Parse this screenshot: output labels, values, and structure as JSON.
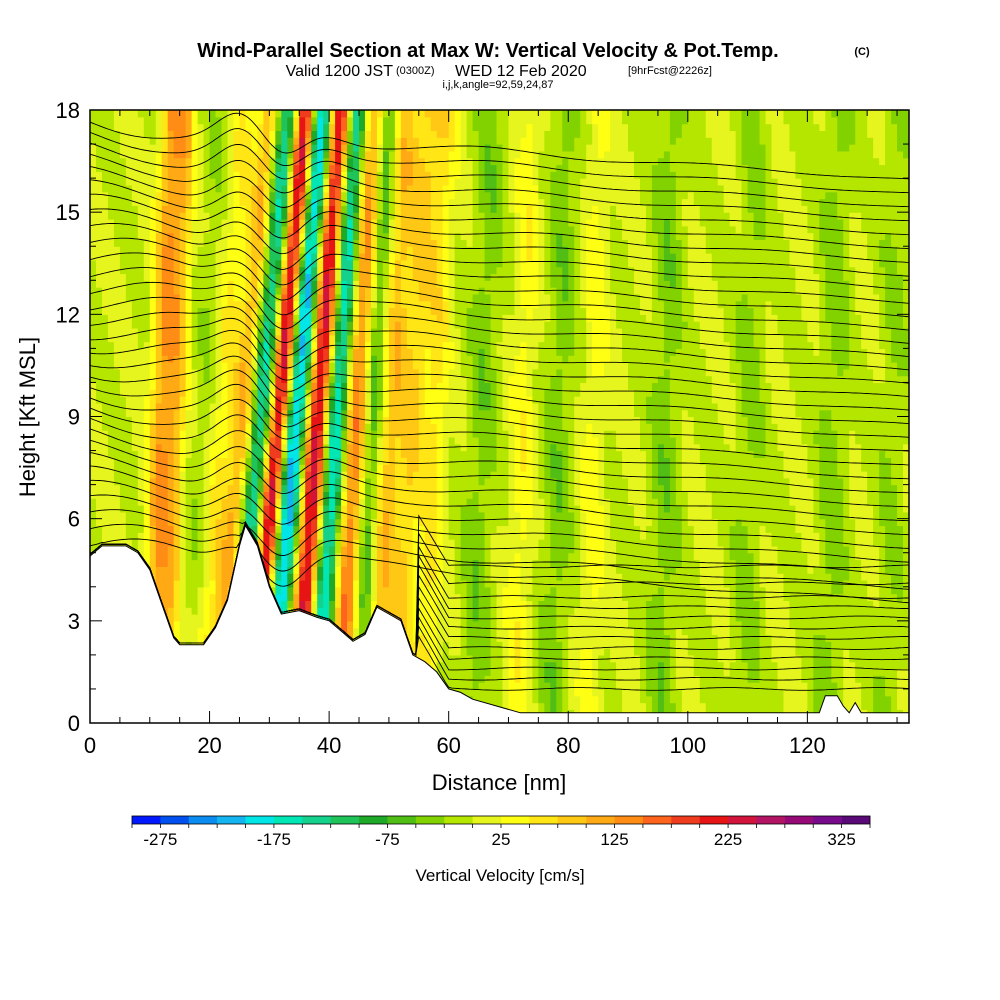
{
  "chart_data": {
    "type": "heatmap",
    "title": {
      "main": "Wind-Parallel Section at Max W: Vertical Velocity & Pot.Temp.",
      "copyright": "(C)"
    },
    "subtitle": {
      "valid_prefix": "Valid 1200 JST",
      "utc": "(0300Z)",
      "date": "WED 12 Feb 2020",
      "forecast": "[9hrFcst@2226z]"
    },
    "indices_line": "i,j,k,angle=92,59,24,87",
    "xlabel": "Distance [nm]",
    "ylabel": "Height [Kft MSL]",
    "xlim": [
      0,
      137
    ],
    "ylim": [
      0,
      18
    ],
    "x_ticks": [
      "0",
      "20",
      "40",
      "60",
      "80",
      "100",
      "120"
    ],
    "y_ticks": [
      "0",
      "3",
      "6",
      "9",
      "12",
      "15",
      "18"
    ],
    "x_tick_values": [
      0,
      20,
      40,
      60,
      80,
      100,
      120
    ],
    "y_tick_values": [
      0,
      3,
      6,
      9,
      12,
      15,
      18
    ],
    "colorbar": {
      "title": "Vertical Velocity [cm/s]",
      "min": -300,
      "max": 350,
      "step": 25,
      "labels": [
        "-275",
        "-175",
        "-75",
        "25",
        "125",
        "225",
        "325"
      ],
      "label_values": [
        -275,
        -175,
        -75,
        25,
        125,
        225,
        325
      ],
      "colors": [
        "#0018ff",
        "#0050f0",
        "#0a8cf0",
        "#14b4f0",
        "#00e6e6",
        "#00e6b4",
        "#14d28c",
        "#1ec35a",
        "#1eaa28",
        "#50be14",
        "#82d200",
        "#b4e600",
        "#e6f51e",
        "#ffff14",
        "#ffe614",
        "#ffc814",
        "#ffaa14",
        "#ff8c14",
        "#ff641e",
        "#f03c1e",
        "#e61414",
        "#d2143c",
        "#b41464",
        "#960a78",
        "#780a8c",
        "#5a0a78"
      ]
    },
    "velocity_field": [
      {
        "center_nm": 11.5,
        "value": 125,
        "width_nm": 2.0,
        "tilt": 0.2
      },
      {
        "center_nm": 14.0,
        "value": 75,
        "width_nm": 1.5,
        "tilt": 0.2
      },
      {
        "center_nm": 18.0,
        "value": -20,
        "width_nm": 2.0,
        "tilt": 0.3
      },
      {
        "center_nm": 21.0,
        "value": 50,
        "width_nm": 2.0,
        "tilt": 0.4
      },
      {
        "center_nm": 24.5,
        "value": 150,
        "width_nm": 2.0,
        "tilt": 0.5
      },
      {
        "center_nm": 27.0,
        "value": -190,
        "width_nm": 2.5,
        "tilt": 0.5
      },
      {
        "center_nm": 30.0,
        "value": 290,
        "width_nm": 1.8,
        "tilt": 0.5
      },
      {
        "center_nm": 33.0,
        "value": -230,
        "width_nm": 2.0,
        "tilt": 0.5
      },
      {
        "center_nm": 37.0,
        "value": 260,
        "width_nm": 2.0,
        "tilt": 0.4
      },
      {
        "center_nm": 40.0,
        "value": -200,
        "width_nm": 2.0,
        "tilt": 0.4
      },
      {
        "center_nm": 43.5,
        "value": 150,
        "width_nm": 2.0,
        "tilt": 0.3
      },
      {
        "center_nm": 46.5,
        "value": -75,
        "width_nm": 1.5,
        "tilt": 0.3
      },
      {
        "center_nm": 49.5,
        "value": 90,
        "width_nm": 2.0,
        "tilt": 0.3
      },
      {
        "center_nm": 53.0,
        "value": 75,
        "width_nm": 2.0,
        "tilt": 0.3
      },
      {
        "center_nm": 57.0,
        "value": 60,
        "width_nm": 2.0,
        "tilt": 0.2
      },
      {
        "center_nm": 65.0,
        "value": -40,
        "width_nm": 2.5,
        "tilt": 0.2
      },
      {
        "center_nm": 72.0,
        "value": 40,
        "width_nm": 2.0,
        "tilt": 0.15
      },
      {
        "center_nm": 78.0,
        "value": -40,
        "width_nm": 2.5,
        "tilt": 0.15
      },
      {
        "center_nm": 84.0,
        "value": 35,
        "width_nm": 2.0,
        "tilt": 0.1
      },
      {
        "center_nm": 96.0,
        "value": -40,
        "width_nm": 2.5,
        "tilt": 0.1
      },
      {
        "center_nm": 110.0,
        "value": -30,
        "width_nm": 2.5,
        "tilt": 0.1
      },
      {
        "center_nm": 124.0,
        "value": -35,
        "width_nm": 2.5,
        "tilt": 0.1
      },
      {
        "center_nm": 134.0,
        "value": -25,
        "width_nm": 2.5,
        "tilt": 0.1
      }
    ],
    "terrain": [
      {
        "x": 0,
        "h": 4.9
      },
      {
        "x": 2,
        "h": 5.2
      },
      {
        "x": 6,
        "h": 5.2
      },
      {
        "x": 8,
        "h": 5.0
      },
      {
        "x": 10,
        "h": 4.5
      },
      {
        "x": 12,
        "h": 3.5
      },
      {
        "x": 14,
        "h": 2.5
      },
      {
        "x": 15,
        "h": 2.3
      },
      {
        "x": 19,
        "h": 2.3
      },
      {
        "x": 21,
        "h": 2.8
      },
      {
        "x": 23,
        "h": 3.6
      },
      {
        "x": 25,
        "h": 5.2
      },
      {
        "x": 26,
        "h": 5.8
      },
      {
        "x": 28,
        "h": 5.2
      },
      {
        "x": 30,
        "h": 4.0
      },
      {
        "x": 32,
        "h": 3.2
      },
      {
        "x": 35,
        "h": 3.3
      },
      {
        "x": 38,
        "h": 3.1
      },
      {
        "x": 40,
        "h": 3.0
      },
      {
        "x": 42,
        "h": 2.7
      },
      {
        "x": 44,
        "h": 2.4
      },
      {
        "x": 46,
        "h": 2.6
      },
      {
        "x": 48,
        "h": 3.4
      },
      {
        "x": 50,
        "h": 3.2
      },
      {
        "x": 52,
        "h": 3.0
      },
      {
        "x": 54,
        "h": 2.0
      },
      {
        "x": 56,
        "h": 1.8
      },
      {
        "x": 58,
        "h": 1.5
      },
      {
        "x": 60,
        "h": 1.0
      },
      {
        "x": 62,
        "h": 0.9
      },
      {
        "x": 64,
        "h": 0.7
      },
      {
        "x": 68,
        "h": 0.5
      },
      {
        "x": 72,
        "h": 0.3
      },
      {
        "x": 122,
        "h": 0.3
      },
      {
        "x": 123,
        "h": 0.8
      },
      {
        "x": 125,
        "h": 0.8
      },
      {
        "x": 126,
        "h": 0.5
      },
      {
        "x": 127,
        "h": 0.3
      },
      {
        "x": 128,
        "h": 0.6
      },
      {
        "x": 129,
        "h": 0.3
      },
      {
        "x": 137,
        "h": 0.3
      }
    ],
    "isentropes": {
      "base_levels": [
        5.2,
        5.6,
        6.0,
        6.4,
        6.8,
        7.2,
        7.6,
        8.0,
        8.4,
        8.8,
        9.2,
        9.6,
        10.0,
        10.4,
        10.8,
        11.2,
        11.6,
        12.0,
        12.4,
        12.8,
        13.2,
        13.6,
        14.0,
        14.4,
        14.8,
        15.2,
        15.6,
        16.0,
        16.4,
        16.8,
        17.2,
        17.6
      ],
      "low_levels": [
        1.0,
        1.3,
        1.6,
        1.9,
        2.2,
        2.5,
        2.8,
        3.1,
        3.4,
        3.7,
        4.1,
        4.6
      ]
    }
  }
}
